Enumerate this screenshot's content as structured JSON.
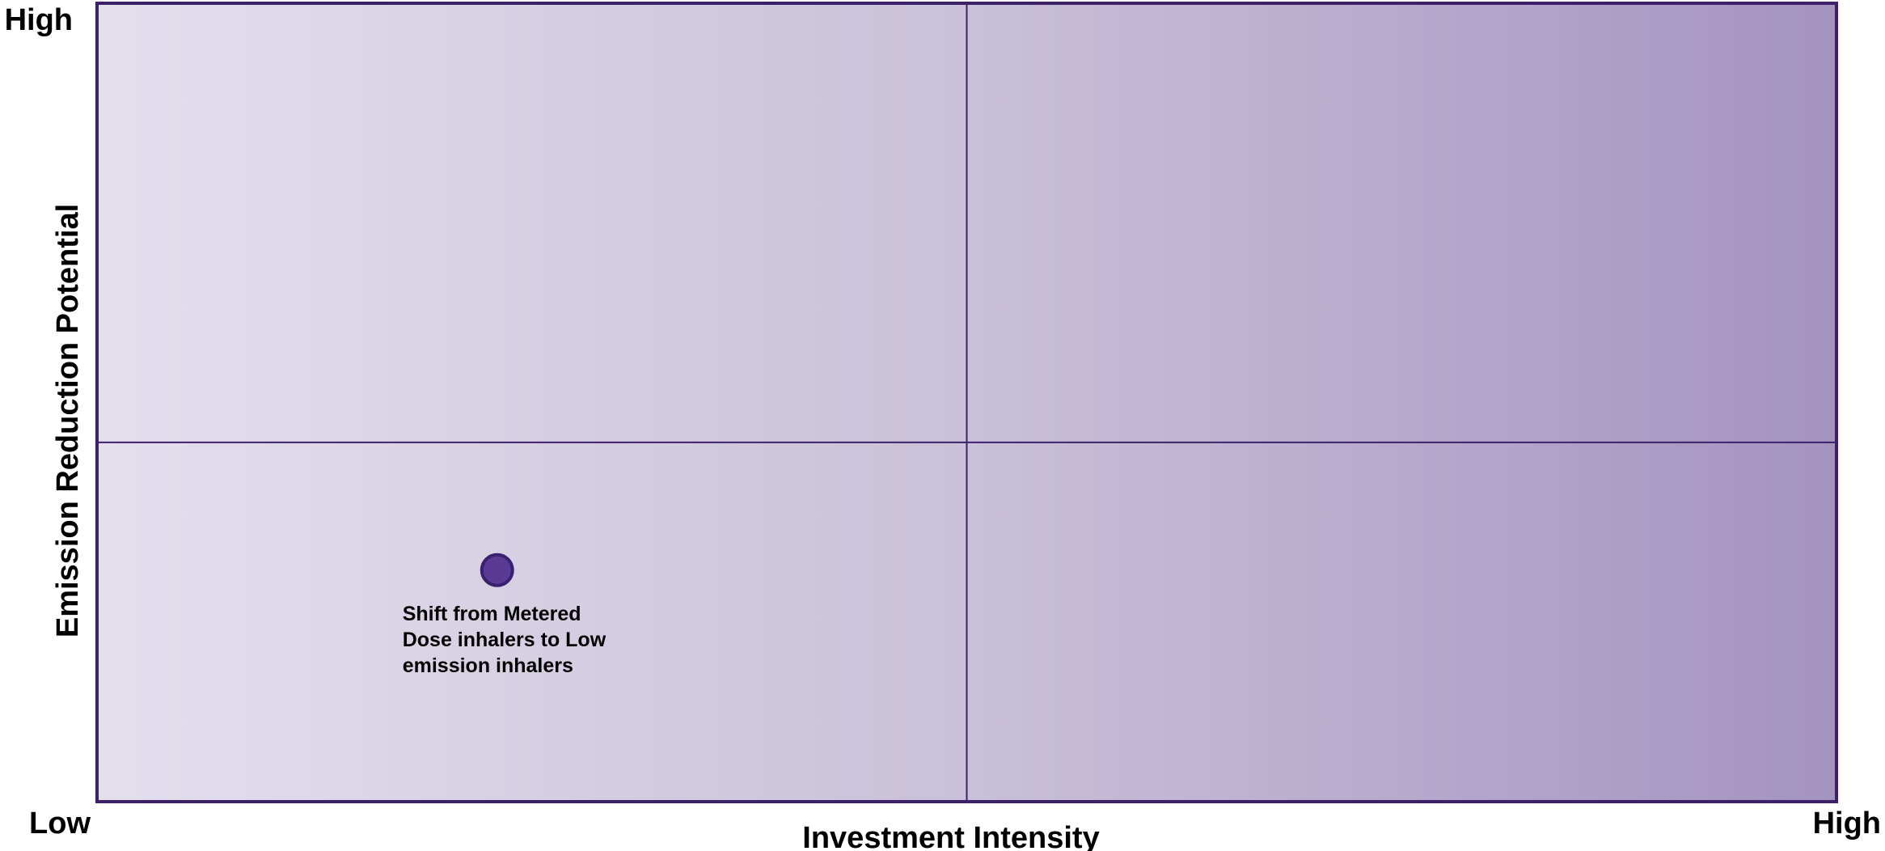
{
  "chart_data": {
    "type": "scatter",
    "xlabel": "Investment Intensity",
    "ylabel": "Emission Reduction Potential",
    "xlim": [
      0,
      100
    ],
    "ylim": [
      0,
      100
    ],
    "xticks": [
      {
        "value": 0,
        "label": "Low"
      },
      {
        "value": 100,
        "label": "High"
      }
    ],
    "yticks": [
      {
        "value": 100,
        "label": "High"
      }
    ],
    "dividers": {
      "x": 50,
      "y": 45
    },
    "x": [
      23
    ],
    "y": [
      29
    ],
    "labels": [
      [
        "Shift from Metered",
        "Dose inhalers to Low",
        "emission inhalers"
      ]
    ],
    "color": "#5b3a96"
  }
}
